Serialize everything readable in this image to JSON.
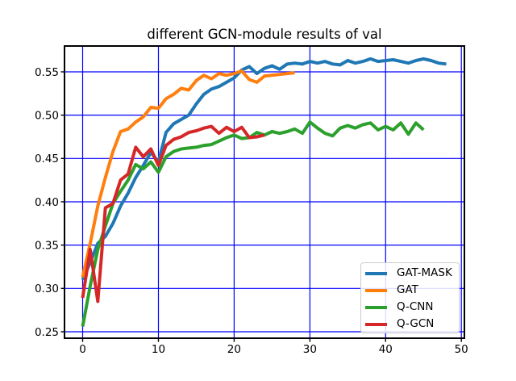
{
  "chart_data": {
    "type": "line",
    "title": "different GCN-module results of val",
    "xlabel": "",
    "ylabel": "",
    "xlim": [
      -2.4,
      50.4
    ],
    "ylim": [
      0.2425,
      0.5798
    ],
    "xticks": [
      0,
      10,
      20,
      30,
      40,
      50
    ],
    "xtick_labels": [
      "0",
      "10",
      "20",
      "30",
      "40",
      "50"
    ],
    "yticks": [
      0.25,
      0.3,
      0.35,
      0.4,
      0.45,
      0.5,
      0.55
    ],
    "ytick_labels": [
      "0.25",
      "0.30",
      "0.35",
      "0.40",
      "0.45",
      "0.50",
      "0.55"
    ],
    "grid": true,
    "grid_color": "#0000ff",
    "spine_color": "#000000",
    "line_width": 4,
    "legend_position": "lower right",
    "series": [
      {
        "name": "GAT-MASK",
        "color": "#1f77b4",
        "x_start": 0,
        "x_step": 1,
        "values": [
          0.31,
          0.33,
          0.352,
          0.36,
          0.375,
          0.395,
          0.41,
          0.428,
          0.442,
          0.457,
          0.446,
          0.48,
          0.49,
          0.495,
          0.5,
          0.513,
          0.524,
          0.53,
          0.533,
          0.538,
          0.543,
          0.552,
          0.556,
          0.548,
          0.554,
          0.557,
          0.553,
          0.559,
          0.56,
          0.559,
          0.562,
          0.56,
          0.562,
          0.559,
          0.558,
          0.563,
          0.56,
          0.562,
          0.565,
          0.562,
          0.563,
          0.564,
          0.562,
          0.56,
          0.563,
          0.565,
          0.563,
          0.56,
          0.559
        ]
      },
      {
        "name": "GAT",
        "color": "#ff7f0e",
        "x_start": 0,
        "x_step": 1,
        "values": [
          0.313,
          0.352,
          0.395,
          0.428,
          0.458,
          0.481,
          0.484,
          0.492,
          0.498,
          0.509,
          0.508,
          0.519,
          0.524,
          0.531,
          0.529,
          0.54,
          0.546,
          0.542,
          0.548,
          0.546,
          0.548,
          0.551,
          0.541,
          0.538,
          0.545,
          0.546,
          0.547,
          0.548,
          0.549
        ]
      },
      {
        "name": "Q-CNN",
        "color": "#2ca02c",
        "x_start": 0,
        "x_step": 1,
        "values": [
          0.256,
          0.303,
          0.345,
          0.372,
          0.398,
          0.412,
          0.425,
          0.443,
          0.438,
          0.446,
          0.434,
          0.452,
          0.458,
          0.461,
          0.462,
          0.463,
          0.465,
          0.466,
          0.47,
          0.474,
          0.477,
          0.473,
          0.474,
          0.48,
          0.477,
          0.481,
          0.479,
          0.481,
          0.484,
          0.479,
          0.492,
          0.485,
          0.479,
          0.476,
          0.485,
          0.488,
          0.485,
          0.489,
          0.491,
          0.483,
          0.487,
          0.483,
          0.491,
          0.478,
          0.491,
          0.483
        ]
      },
      {
        "name": "Q-GCN",
        "color": "#d62728",
        "x_start": 0,
        "x_step": 1,
        "values": [
          0.289,
          0.345,
          0.285,
          0.393,
          0.398,
          0.425,
          0.432,
          0.463,
          0.452,
          0.461,
          0.442,
          0.465,
          0.472,
          0.475,
          0.48,
          0.482,
          0.485,
          0.487,
          0.479,
          0.486,
          0.481,
          0.486,
          0.474,
          0.475,
          0.477
        ]
      }
    ]
  }
}
